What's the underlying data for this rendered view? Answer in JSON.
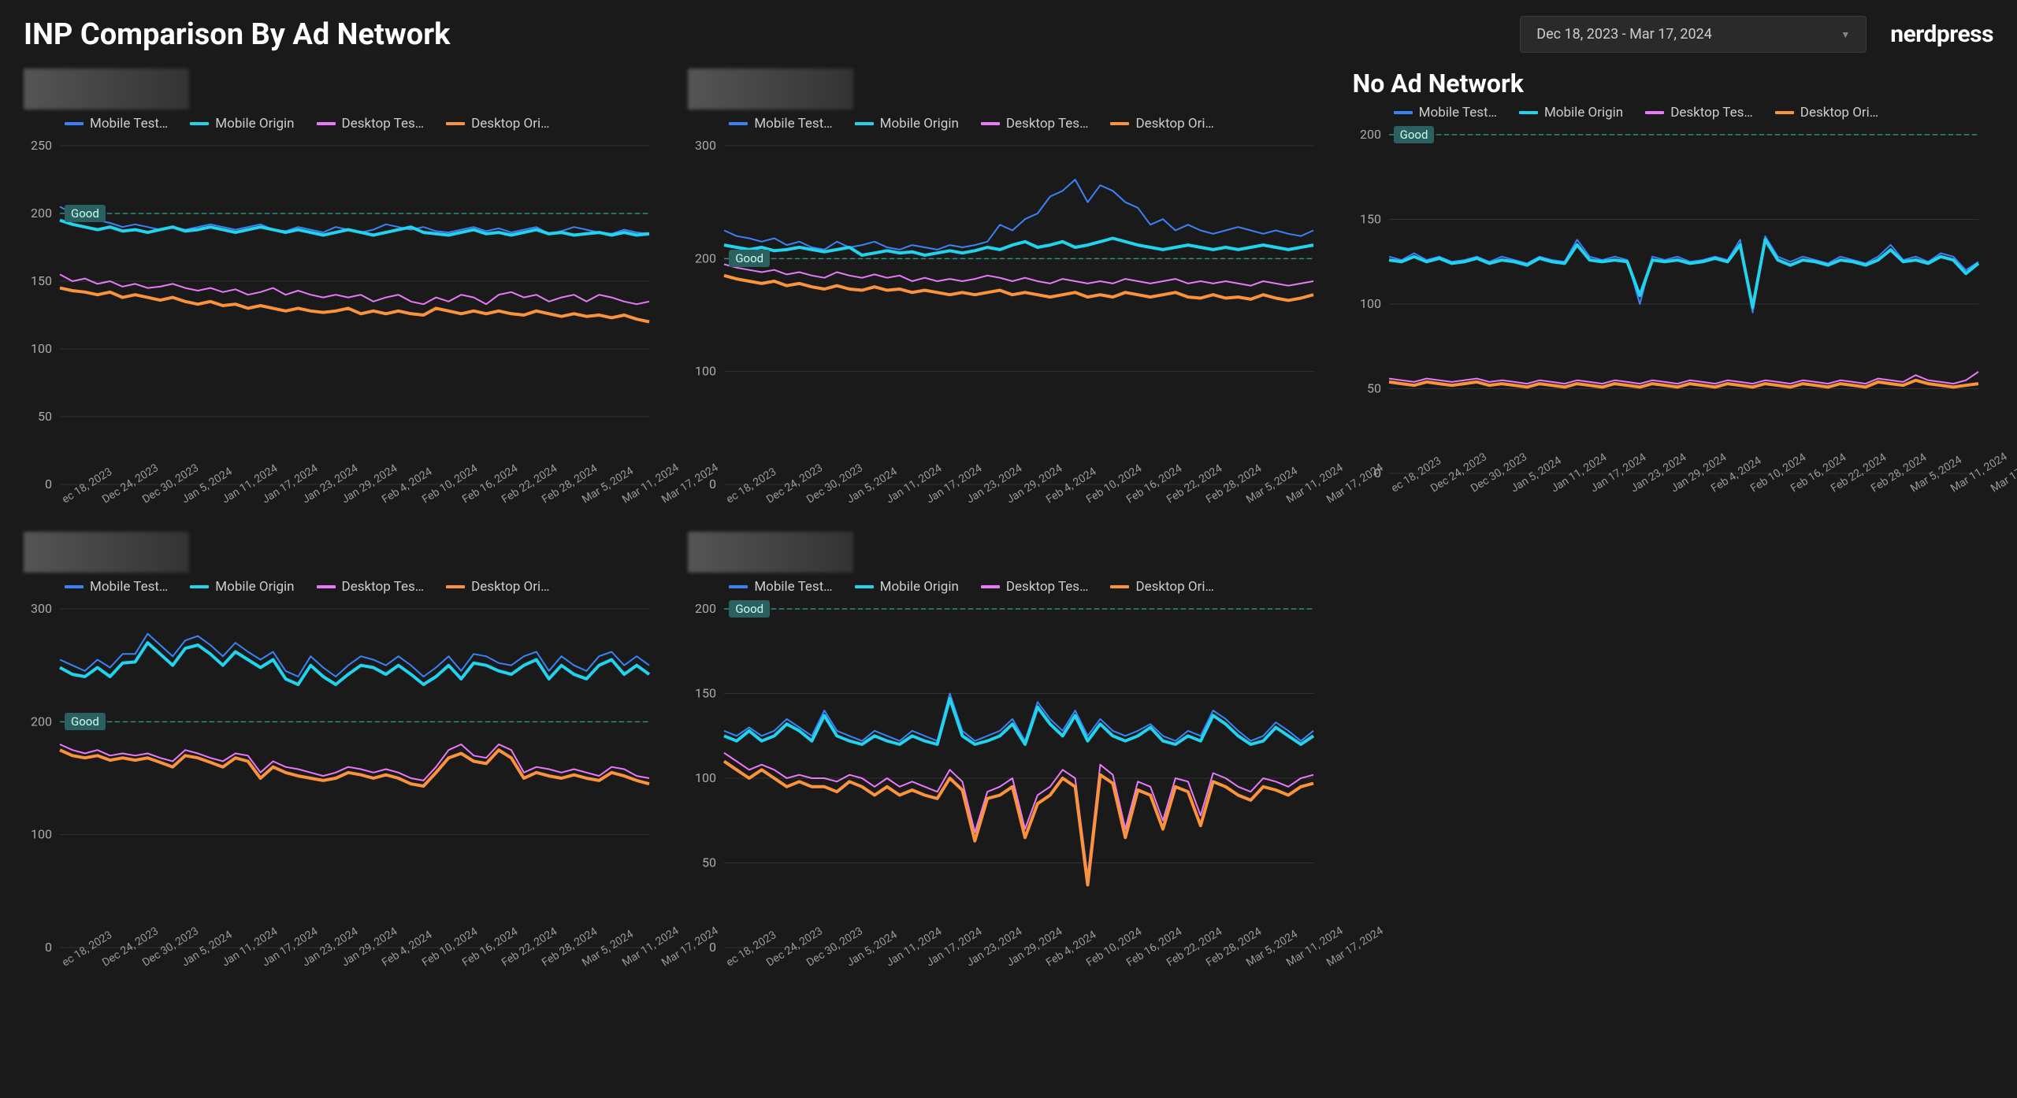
{
  "header": {
    "title": "INP Comparison By Ad Network",
    "date_range": "Dec 18, 2023 - Mar 17, 2024",
    "brand": "nerdpress"
  },
  "legend": {
    "mobile_test": "Mobile Test…",
    "mobile_origin": "Mobile Origin",
    "desktop_test": "Desktop Tes…",
    "desktop_origin": "Desktop Ori…"
  },
  "colors": {
    "mobile_test": "#3b82f6",
    "mobile_origin": "#22d3ee",
    "desktop_test": "#e879f9",
    "desktop_origin": "#fb923c",
    "good_line": "#2dd4bf",
    "grid": "#333333",
    "bg": "#1a1a1a",
    "axis_text": "#aaaaaa"
  },
  "x_labels": [
    "ec 18, 2023",
    "Dec 24, 2023",
    "Dec 30, 2023",
    "Jan 5, 2024",
    "Jan 11, 2024",
    "Jan 17, 2024",
    "Jan 23, 2024",
    "Jan 29, 2024",
    "Feb 4, 2024",
    "Feb 10, 2024",
    "Feb 16, 2024",
    "Feb 22, 2024",
    "Feb 28, 2024",
    "Mar 5, 2024",
    "Mar 11, 2024",
    "Mar 17, 2024"
  ],
  "charts": [
    {
      "id": "chart1",
      "title_blurred": true,
      "title": "",
      "ylim": [
        0,
        250
      ],
      "ytick_step": 50,
      "good_value": 200,
      "series": {
        "mobile_test": [
          205,
          200,
          198,
          195,
          193,
          190,
          192,
          190,
          188,
          190,
          188,
          190,
          192,
          190,
          188,
          190,
          192,
          188,
          187,
          190,
          188,
          186,
          190,
          188,
          186,
          188,
          192,
          190,
          188,
          190,
          187,
          186,
          188,
          190,
          187,
          189,
          186,
          188,
          190,
          185,
          187,
          190,
          188,
          186,
          185,
          188,
          186,
          185
        ],
        "mobile_origin": [
          195,
          192,
          190,
          188,
          190,
          187,
          188,
          186,
          188,
          190,
          187,
          188,
          190,
          188,
          186,
          188,
          190,
          188,
          186,
          188,
          186,
          184,
          186,
          188,
          186,
          184,
          186,
          188,
          190,
          186,
          185,
          184,
          186,
          188,
          185,
          186,
          184,
          186,
          188,
          185,
          186,
          184,
          185,
          186,
          184,
          186,
          184,
          185
        ],
        "desktop_test": [
          155,
          150,
          152,
          148,
          150,
          146,
          148,
          145,
          146,
          148,
          145,
          143,
          145,
          142,
          144,
          140,
          142,
          145,
          140,
          143,
          140,
          138,
          140,
          138,
          140,
          135,
          138,
          140,
          135,
          133,
          138,
          135,
          140,
          138,
          133,
          140,
          142,
          138,
          140,
          135,
          138,
          140,
          135,
          140,
          138,
          135,
          133,
          135
        ],
        "desktop_origin": [
          145,
          143,
          142,
          140,
          142,
          138,
          140,
          138,
          136,
          138,
          135,
          133,
          135,
          132,
          133,
          130,
          132,
          130,
          128,
          130,
          128,
          127,
          128,
          130,
          126,
          128,
          126,
          128,
          126,
          125,
          130,
          128,
          126,
          128,
          126,
          128,
          126,
          125,
          128,
          126,
          124,
          126,
          124,
          125,
          123,
          125,
          122,
          120
        ]
      }
    },
    {
      "id": "chart2",
      "title_blurred": true,
      "title": "",
      "ylim": [
        0,
        300
      ],
      "ytick_step": 100,
      "good_value": 200,
      "series": {
        "mobile_test": [
          225,
          220,
          218,
          215,
          218,
          212,
          215,
          210,
          208,
          215,
          210,
          212,
          215,
          210,
          208,
          212,
          210,
          208,
          212,
          210,
          212,
          215,
          230,
          225,
          235,
          240,
          255,
          260,
          270,
          250,
          265,
          260,
          250,
          245,
          230,
          235,
          225,
          230,
          225,
          222,
          225,
          228,
          225,
          222,
          225,
          222,
          220,
          225
        ],
        "mobile_origin": [
          212,
          210,
          208,
          210,
          207,
          208,
          210,
          208,
          206,
          208,
          210,
          203,
          205,
          207,
          205,
          206,
          203,
          205,
          207,
          205,
          207,
          210,
          208,
          212,
          215,
          210,
          212,
          215,
          210,
          212,
          215,
          218,
          215,
          212,
          210,
          208,
          210,
          212,
          210,
          208,
          210,
          208,
          210,
          212,
          210,
          208,
          210,
          212
        ],
        "desktop_test": [
          195,
          192,
          190,
          188,
          190,
          186,
          188,
          185,
          183,
          188,
          185,
          183,
          186,
          183,
          185,
          180,
          183,
          180,
          182,
          180,
          182,
          185,
          183,
          180,
          183,
          180,
          178,
          182,
          180,
          178,
          180,
          178,
          182,
          180,
          178,
          180,
          182,
          178,
          180,
          178,
          180,
          178,
          176,
          180,
          178,
          176,
          178,
          180
        ],
        "desktop_origin": [
          185,
          182,
          180,
          178,
          180,
          176,
          178,
          175,
          173,
          176,
          173,
          172,
          175,
          172,
          173,
          170,
          172,
          170,
          168,
          170,
          168,
          170,
          172,
          168,
          170,
          168,
          166,
          168,
          170,
          166,
          168,
          166,
          170,
          168,
          166,
          168,
          170,
          166,
          165,
          168,
          165,
          166,
          164,
          168,
          165,
          163,
          165,
          168
        ]
      }
    },
    {
      "id": "chart3",
      "title_blurred": false,
      "title": "No Ad Network",
      "ylim": [
        0,
        200
      ],
      "ytick_step": 50,
      "good_value": 200,
      "series": {
        "mobile_test": [
          128,
          126,
          130,
          126,
          128,
          125,
          126,
          128,
          125,
          128,
          126,
          124,
          128,
          126,
          125,
          138,
          128,
          126,
          128,
          126,
          100,
          128,
          126,
          128,
          125,
          126,
          128,
          126,
          138,
          95,
          140,
          128,
          125,
          128,
          126,
          124,
          128,
          126,
          124,
          128,
          135,
          126,
          128,
          125,
          130,
          128,
          120,
          125
        ],
        "mobile_origin": [
          126,
          125,
          128,
          125,
          127,
          124,
          125,
          127,
          124,
          126,
          125,
          123,
          127,
          125,
          124,
          135,
          126,
          125,
          126,
          125,
          105,
          126,
          125,
          126,
          124,
          125,
          127,
          125,
          135,
          98,
          138,
          126,
          123,
          126,
          125,
          123,
          126,
          125,
          123,
          126,
          132,
          125,
          126,
          124,
          128,
          126,
          118,
          124
        ],
        "desktop_test": [
          56,
          55,
          54,
          56,
          55,
          54,
          55,
          56,
          54,
          55,
          54,
          53,
          55,
          54,
          53,
          55,
          54,
          53,
          55,
          54,
          53,
          55,
          54,
          53,
          55,
          54,
          53,
          55,
          54,
          53,
          55,
          54,
          53,
          55,
          54,
          53,
          55,
          54,
          53,
          56,
          55,
          54,
          58,
          55,
          54,
          53,
          55,
          60
        ],
        "desktop_origin": [
          54,
          53,
          52,
          54,
          53,
          52,
          53,
          54,
          52,
          53,
          52,
          51,
          53,
          52,
          51,
          53,
          52,
          51,
          53,
          52,
          51,
          53,
          52,
          51,
          53,
          52,
          51,
          53,
          52,
          51,
          53,
          52,
          51,
          53,
          52,
          51,
          53,
          52,
          51,
          54,
          53,
          52,
          55,
          53,
          52,
          51,
          52,
          53
        ]
      }
    },
    {
      "id": "chart4",
      "title_blurred": true,
      "title": "",
      "ylim": [
        0,
        300
      ],
      "ytick_step": 100,
      "good_value": 200,
      "series": {
        "mobile_test": [
          255,
          250,
          245,
          255,
          248,
          260,
          260,
          278,
          268,
          258,
          272,
          276,
          268,
          258,
          270,
          262,
          255,
          262,
          245,
          240,
          258,
          248,
          240,
          250,
          258,
          255,
          250,
          258,
          250,
          240,
          248,
          258,
          245,
          260,
          258,
          252,
          250,
          258,
          262,
          245,
          258,
          250,
          245,
          258,
          262,
          250,
          258,
          250
        ],
        "mobile_origin": [
          248,
          242,
          240,
          248,
          240,
          252,
          253,
          270,
          260,
          250,
          265,
          268,
          260,
          250,
          262,
          255,
          248,
          255,
          238,
          233,
          250,
          240,
          233,
          242,
          250,
          248,
          242,
          250,
          242,
          233,
          240,
          250,
          238,
          252,
          250,
          245,
          242,
          250,
          255,
          238,
          250,
          242,
          238,
          250,
          255,
          242,
          250,
          242
        ],
        "desktop_test": [
          180,
          175,
          172,
          175,
          170,
          172,
          170,
          172,
          168,
          165,
          175,
          172,
          168,
          165,
          172,
          170,
          155,
          165,
          160,
          158,
          155,
          152,
          155,
          160,
          158,
          155,
          158,
          155,
          150,
          148,
          160,
          175,
          180,
          170,
          168,
          180,
          175,
          155,
          160,
          158,
          155,
          158,
          155,
          152,
          160,
          158,
          152,
          150
        ],
        "desktop_origin": [
          175,
          170,
          168,
          170,
          166,
          168,
          166,
          168,
          164,
          160,
          170,
          168,
          164,
          160,
          168,
          165,
          150,
          160,
          155,
          152,
          150,
          148,
          150,
          155,
          153,
          150,
          153,
          150,
          145,
          143,
          155,
          168,
          172,
          165,
          163,
          175,
          168,
          150,
          155,
          152,
          150,
          153,
          150,
          148,
          155,
          152,
          148,
          145
        ]
      }
    },
    {
      "id": "chart5",
      "title_blurred": true,
      "title": "",
      "ylim": [
        0,
        200
      ],
      "ytick_step": 50,
      "good_value": 200,
      "series": {
        "mobile_test": [
          128,
          125,
          130,
          125,
          128,
          135,
          130,
          125,
          140,
          128,
          125,
          122,
          128,
          125,
          122,
          128,
          125,
          122,
          150,
          128,
          122,
          125,
          128,
          135,
          122,
          145,
          135,
          128,
          140,
          125,
          135,
          128,
          125,
          128,
          132,
          125,
          122,
          128,
          125,
          140,
          135,
          128,
          122,
          125,
          133,
          128,
          122,
          128
        ],
        "mobile_origin": [
          125,
          122,
          128,
          122,
          125,
          132,
          128,
          122,
          137,
          125,
          122,
          120,
          125,
          122,
          120,
          125,
          122,
          120,
          147,
          125,
          120,
          122,
          125,
          132,
          120,
          142,
          132,
          125,
          137,
          122,
          132,
          125,
          122,
          125,
          130,
          122,
          120,
          125,
          122,
          137,
          132,
          125,
          120,
          122,
          130,
          125,
          120,
          125
        ],
        "desktop_test": [
          115,
          110,
          105,
          108,
          105,
          100,
          102,
          100,
          100,
          98,
          102,
          100,
          95,
          100,
          95,
          98,
          95,
          92,
          105,
          98,
          68,
          92,
          95,
          100,
          70,
          90,
          95,
          105,
          100,
          42,
          108,
          102,
          70,
          98,
          95,
          75,
          100,
          98,
          78,
          103,
          100,
          95,
          92,
          100,
          98,
          95,
          100,
          102
        ],
        "desktop_origin": [
          110,
          105,
          100,
          105,
          100,
          95,
          98,
          95,
          95,
          92,
          98,
          95,
          90,
          95,
          90,
          93,
          90,
          88,
          100,
          93,
          63,
          88,
          90,
          95,
          65,
          85,
          90,
          100,
          95,
          37,
          102,
          97,
          65,
          93,
          90,
          70,
          95,
          92,
          72,
          98,
          95,
          90,
          87,
          95,
          93,
          90,
          95,
          97
        ]
      }
    }
  ]
}
